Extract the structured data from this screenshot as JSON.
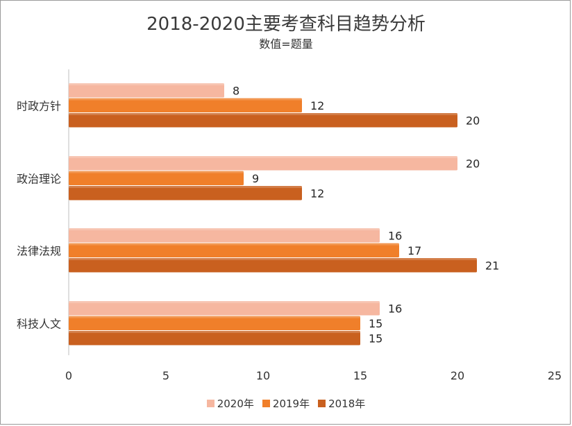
{
  "chart_data": {
    "type": "bar",
    "orientation": "horizontal",
    "title": "2018-2020主要考查科目趋势分析",
    "subtitle": "数值=题量",
    "categories": [
      "时政方针",
      "政治理论",
      "法律法规",
      "科技人文"
    ],
    "series": [
      {
        "name": "2020年",
        "color": "#f6b7a0",
        "values": [
          8,
          20,
          16,
          16
        ]
      },
      {
        "name": "2019年",
        "color": "#f07f2a",
        "values": [
          12,
          9,
          17,
          15
        ]
      },
      {
        "name": "2018年",
        "color": "#c9601f",
        "values": [
          20,
          12,
          21,
          15
        ]
      }
    ],
    "xlim": [
      0,
      25
    ],
    "xticks": [
      "0",
      "5",
      "10",
      "15",
      "20",
      "25"
    ],
    "legend_position": "bottom",
    "grid": false,
    "data_labels": true
  }
}
